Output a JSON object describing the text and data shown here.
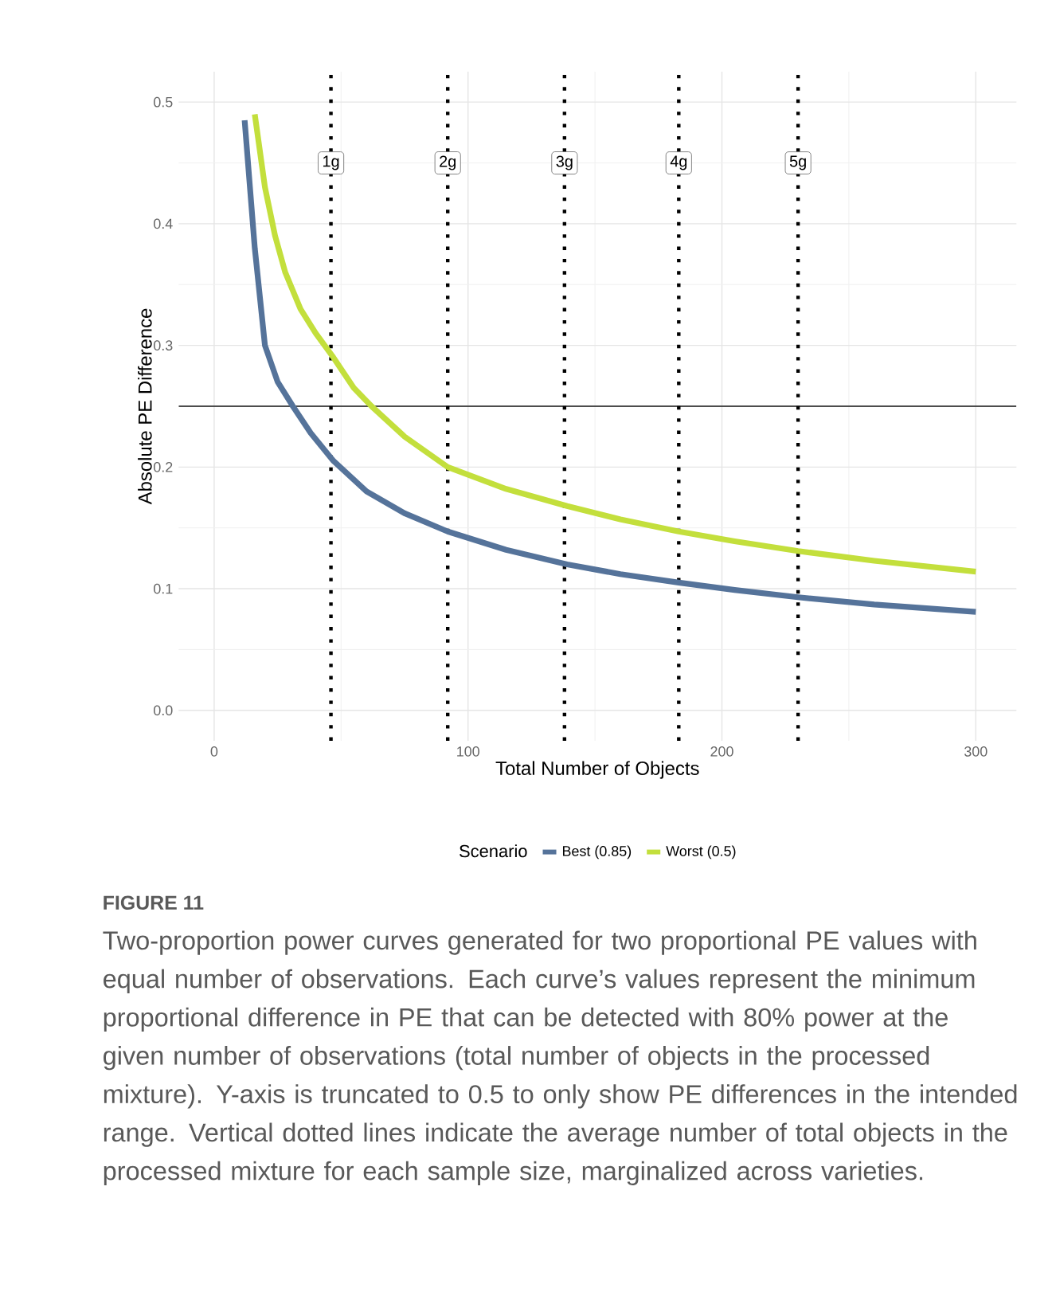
{
  "chart_data": {
    "type": "line",
    "xlabel": "Total Number of Objects",
    "ylabel": "Absolute PE Difference",
    "legend_title": "Scenario",
    "series": [
      {
        "name": "Best (0.85)",
        "color": "#55739a",
        "x": [
          12,
          16,
          20,
          25,
          31,
          38,
          47,
          60,
          75,
          92,
          115,
          139,
          160,
          183,
          205,
          230,
          260,
          300
        ],
        "values": [
          0.485,
          0.38,
          0.3,
          0.27,
          0.25,
          0.228,
          0.205,
          0.18,
          0.162,
          0.147,
          0.132,
          0.12,
          0.112,
          0.105,
          0.099,
          0.093,
          0.087,
          0.081
        ]
      },
      {
        "name": "Worst (0.5)",
        "color": "#c3df3c",
        "x": [
          16,
          20,
          24,
          28,
          34,
          40,
          47,
          55,
          62,
          75,
          92,
          115,
          139,
          160,
          183,
          205,
          230,
          260,
          300
        ],
        "values": [
          0.49,
          0.43,
          0.39,
          0.36,
          0.33,
          0.31,
          0.29,
          0.265,
          0.25,
          0.225,
          0.2,
          0.182,
          0.168,
          0.157,
          0.147,
          0.139,
          0.131,
          0.123,
          0.114
        ]
      }
    ],
    "xlim": [
      -14,
      316
    ],
    "ylim": [
      -0.025,
      0.525
    ],
    "xticks": [
      0,
      100,
      200,
      300
    ],
    "yticks": [
      {
        "value": 0,
        "label": "0.0"
      },
      0.1,
      0.2,
      0.3,
      0.4,
      0.5
    ],
    "ref_lines": [
      {
        "axis": "y",
        "value": 0.25,
        "label": null,
        "color": "#4d4d4d",
        "line_style": "solid"
      },
      {
        "axis": "x",
        "value": 46,
        "label": "1g",
        "color": "#000000",
        "line_style": "dotted"
      },
      {
        "axis": "x",
        "value": 92,
        "label": "2g",
        "color": "#000000",
        "line_style": "dotted"
      },
      {
        "axis": "x",
        "value": 138,
        "label": "3g",
        "color": "#000000",
        "line_style": "dotted"
      },
      {
        "axis": "x",
        "value": 183,
        "label": "4g",
        "color": "#000000",
        "line_style": "dotted"
      },
      {
        "axis": "x",
        "value": 230,
        "label": "5g",
        "color": "#000000",
        "line_style": "dotted"
      }
    ],
    "grid": true,
    "legend": "bottom",
    "marker": "none",
    "line_style": "solid",
    "annotations": [
      "FIGURE 11",
      "Two-proportion power curves generated for two proportional PE values with equal number of observations. Each curve’s values represent the minimum proportional difference in PE that can be detected with 80% power at the given number of observations (total number of objects in the processed mixture). Y-axis is truncated to 0.5 to only show PE differences in the intended range. Vertical dotted lines indicate the average number of total objects in the processed mixture for each sample size, marginalized across varieties."
    ]
  }
}
